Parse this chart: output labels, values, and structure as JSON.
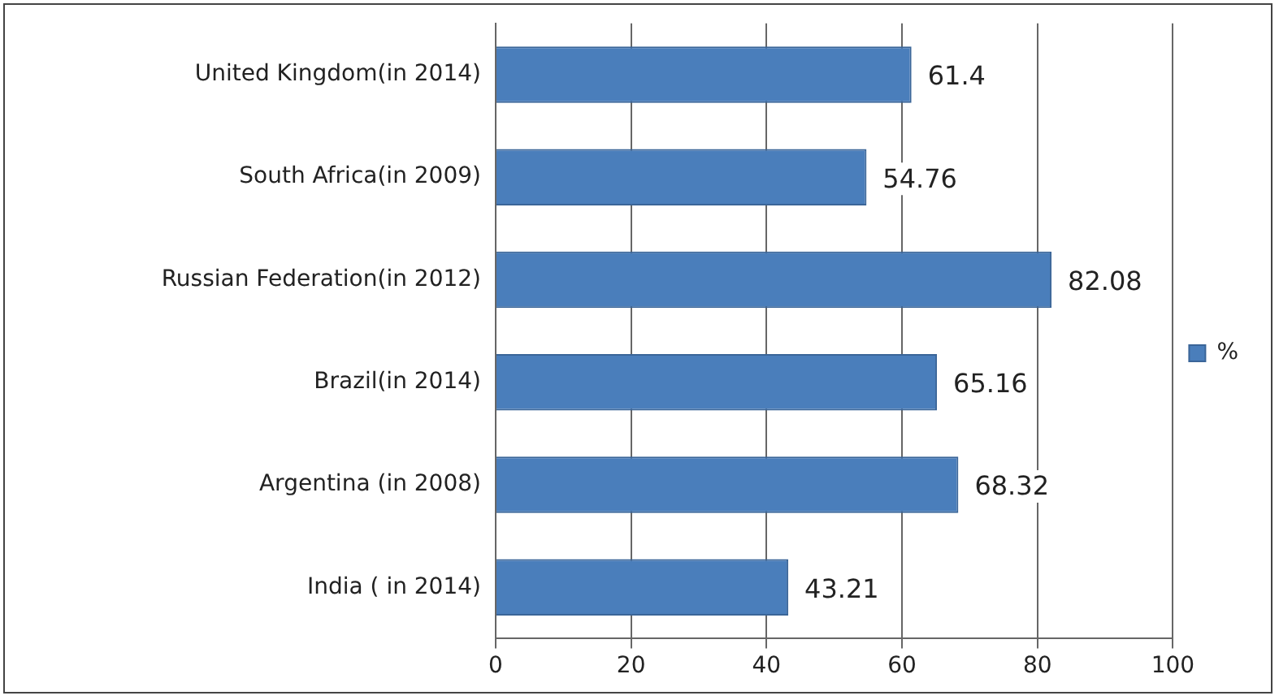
{
  "chart_data": {
    "type": "bar",
    "orientation": "horizontal",
    "categories": [
      "United Kingdom(in 2014)",
      "South Africa(in 2009)",
      "Russian Federation(in 2012)",
      "Brazil(in 2014)",
      "Argentina (in 2008)",
      "India ( in 2014)"
    ],
    "series": [
      {
        "name": "%",
        "color": "#4a7ebb",
        "values": [
          61.4,
          54.76,
          82.08,
          65.16,
          68.32,
          43.21
        ]
      }
    ],
    "xlim": [
      0,
      100
    ],
    "xticks": [
      0,
      20,
      40,
      60,
      80,
      100
    ],
    "grid": "x",
    "legend": "right",
    "data_labels": true
  }
}
